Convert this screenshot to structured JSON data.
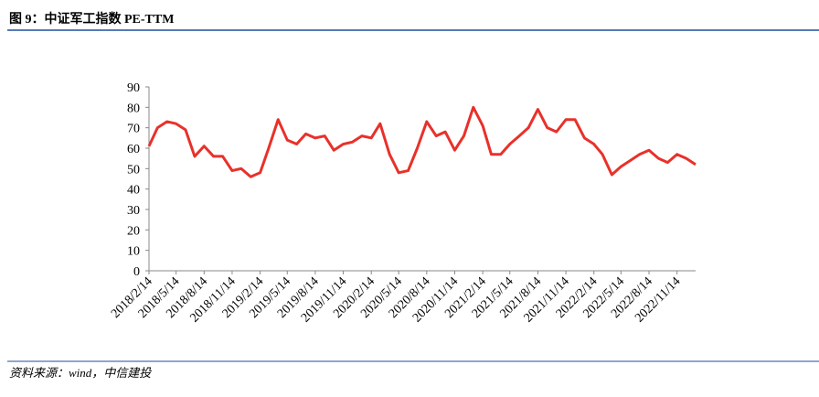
{
  "chart_data": {
    "type": "line",
    "title": "图 9：中证军工指数 PE-TTM",
    "source": "资料来源：wind，中信建投",
    "x": [
      "2018/2/14",
      "2018/3/14",
      "2018/4/14",
      "2018/5/14",
      "2018/6/14",
      "2018/7/14",
      "2018/8/14",
      "2018/9/14",
      "2018/10/14",
      "2018/11/14",
      "2018/12/14",
      "2019/1/14",
      "2019/2/14",
      "2019/3/14",
      "2019/4/14",
      "2019/5/14",
      "2019/6/14",
      "2019/7/14",
      "2019/8/14",
      "2019/9/14",
      "2019/10/14",
      "2019/11/14",
      "2019/12/14",
      "2020/1/14",
      "2020/2/14",
      "2020/3/14",
      "2020/4/14",
      "2020/5/14",
      "2020/6/14",
      "2020/7/14",
      "2020/8/14",
      "2020/9/14",
      "2020/10/14",
      "2020/11/14",
      "2020/12/14",
      "2021/1/14",
      "2021/2/14",
      "2021/3/14",
      "2021/4/14",
      "2021/5/14",
      "2021/6/14",
      "2021/7/14",
      "2021/8/14",
      "2021/9/14",
      "2021/10/14",
      "2021/11/14",
      "2021/12/14",
      "2022/1/14",
      "2022/2/14",
      "2022/3/14",
      "2022/4/14",
      "2022/5/14",
      "2022/6/14",
      "2022/7/14",
      "2022/8/14",
      "2022/9/14",
      "2022/10/14",
      "2022/11/14",
      "2022/12/14",
      "2023/1/14"
    ],
    "series": [
      {
        "color": "#e8312a",
        "values": [
          61,
          70,
          73,
          72,
          69,
          56,
          61,
          56,
          56,
          49,
          50,
          46,
          48,
          60,
          74,
          64,
          62,
          67,
          65,
          66,
          59,
          62,
          63,
          66,
          65,
          72,
          57,
          48,
          49,
          60,
          73,
          66,
          68,
          59,
          66,
          80,
          71,
          57,
          57,
          62,
          66,
          70,
          79,
          70,
          68,
          74,
          74,
          65,
          62,
          57,
          47,
          51,
          54,
          57,
          59,
          55,
          53,
          57,
          55,
          52
        ]
      }
    ],
    "xlim": [
      "2018/2/14",
      "2023/1/14"
    ],
    "xticks": [
      "2018/2/14",
      "2018/5/14",
      "2018/8/14",
      "2018/11/14",
      "2019/2/14",
      "2019/5/14",
      "2019/8/14",
      "2019/11/14",
      "2020/2/14",
      "2020/5/14",
      "2020/8/14",
      "2020/11/14",
      "2021/2/14",
      "2021/5/14",
      "2021/8/14",
      "2021/11/14",
      "2022/2/14",
      "2022/5/14",
      "2022/8/14",
      "2022/11/14"
    ],
    "ylim": [
      0,
      90
    ],
    "yticks": [
      0,
      10,
      20,
      30,
      40,
      50,
      60,
      70,
      80,
      90
    ]
  }
}
